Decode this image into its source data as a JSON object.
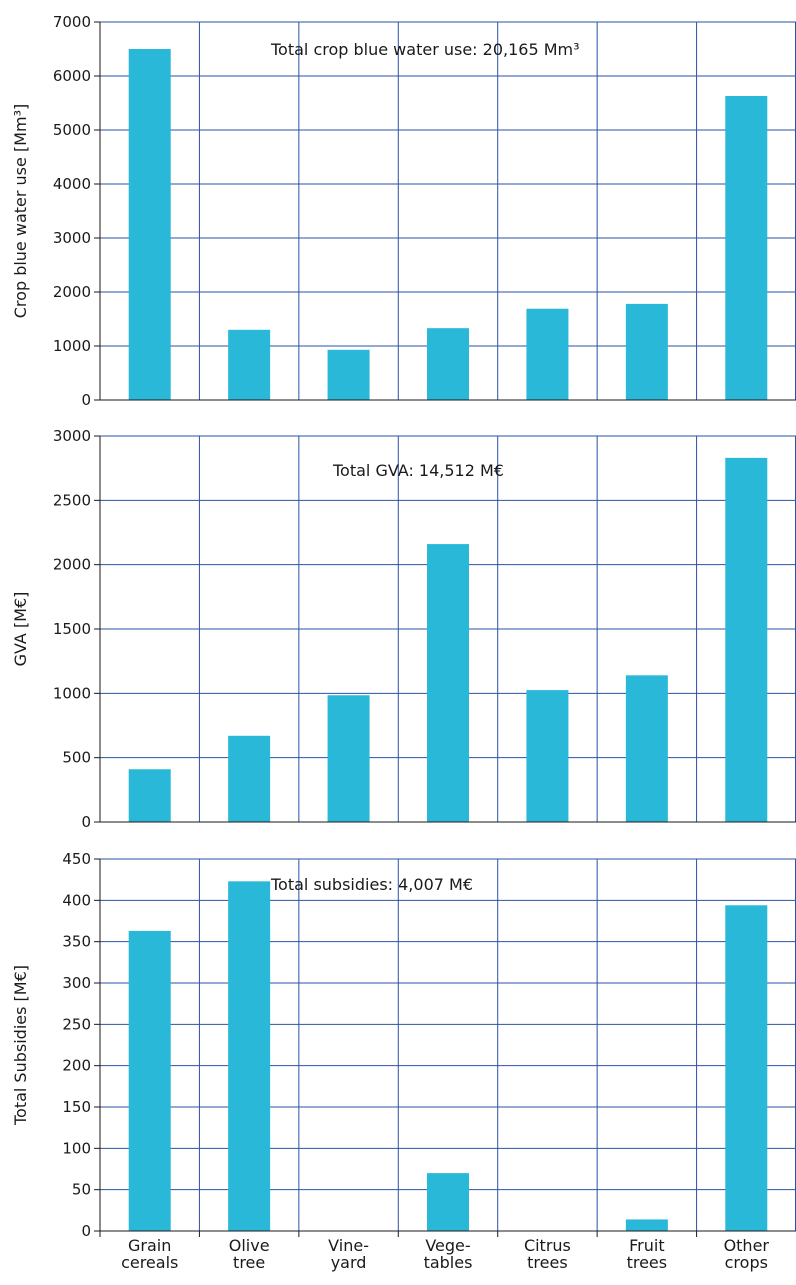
{
  "colors": {
    "bar": "#29b8d8",
    "grid": "#2a52a8",
    "axis": "#1a1a1a"
  },
  "category_lines": [
    [
      "Grain",
      "cereals"
    ],
    [
      "Olive",
      "tree"
    ],
    [
      "Vine-",
      "yard"
    ],
    [
      "Vege-",
      "tables"
    ],
    [
      "Citrus",
      "trees"
    ],
    [
      "Fruit",
      "trees"
    ],
    [
      "Other",
      "crops"
    ]
  ],
  "chart_data": [
    {
      "type": "bar",
      "categories": [
        "Grain cereals",
        "Olive tree",
        "Vineyard",
        "Vegetables",
        "Citrus trees",
        "Fruit trees",
        "Other crops"
      ],
      "values": [
        6500,
        1300,
        930,
        1330,
        1690,
        1780,
        5630
      ],
      "ylabel": "Crop blue water use [Mm³]",
      "ylim": [
        0,
        7000
      ],
      "yticks": [
        0,
        1000,
        2000,
        3000,
        4000,
        5000,
        6000,
        7000
      ],
      "annotation": "Total crop blue water use: 20,165 Mm³",
      "grid": true
    },
    {
      "type": "bar",
      "categories": [
        "Grain cereals",
        "Olive tree",
        "Vineyard",
        "Vegetables",
        "Citrus trees",
        "Fruit trees",
        "Other crops"
      ],
      "values": [
        410,
        670,
        985,
        2160,
        1025,
        1140,
        2830
      ],
      "ylabel": "GVA [M€]",
      "ylim": [
        0,
        3000
      ],
      "yticks": [
        0,
        500,
        1000,
        1500,
        2000,
        2500,
        3000
      ],
      "annotation": "Total GVA:       14,512 M€",
      "grid": true
    },
    {
      "type": "bar",
      "categories": [
        "Grain cereals",
        "Olive tree",
        "Vineyard",
        "Vegetables",
        "Citrus trees",
        "Fruit trees",
        "Other crops"
      ],
      "values": [
        363,
        423,
        0,
        70,
        0,
        14,
        394
      ],
      "ylabel": "Total Subsidies [M€]",
      "ylim": [
        0,
        450
      ],
      "yticks": [
        0,
        50,
        100,
        150,
        200,
        250,
        300,
        350,
        400,
        450
      ],
      "annotation": "Total subsidies: 4,007 M€",
      "grid": true
    }
  ]
}
